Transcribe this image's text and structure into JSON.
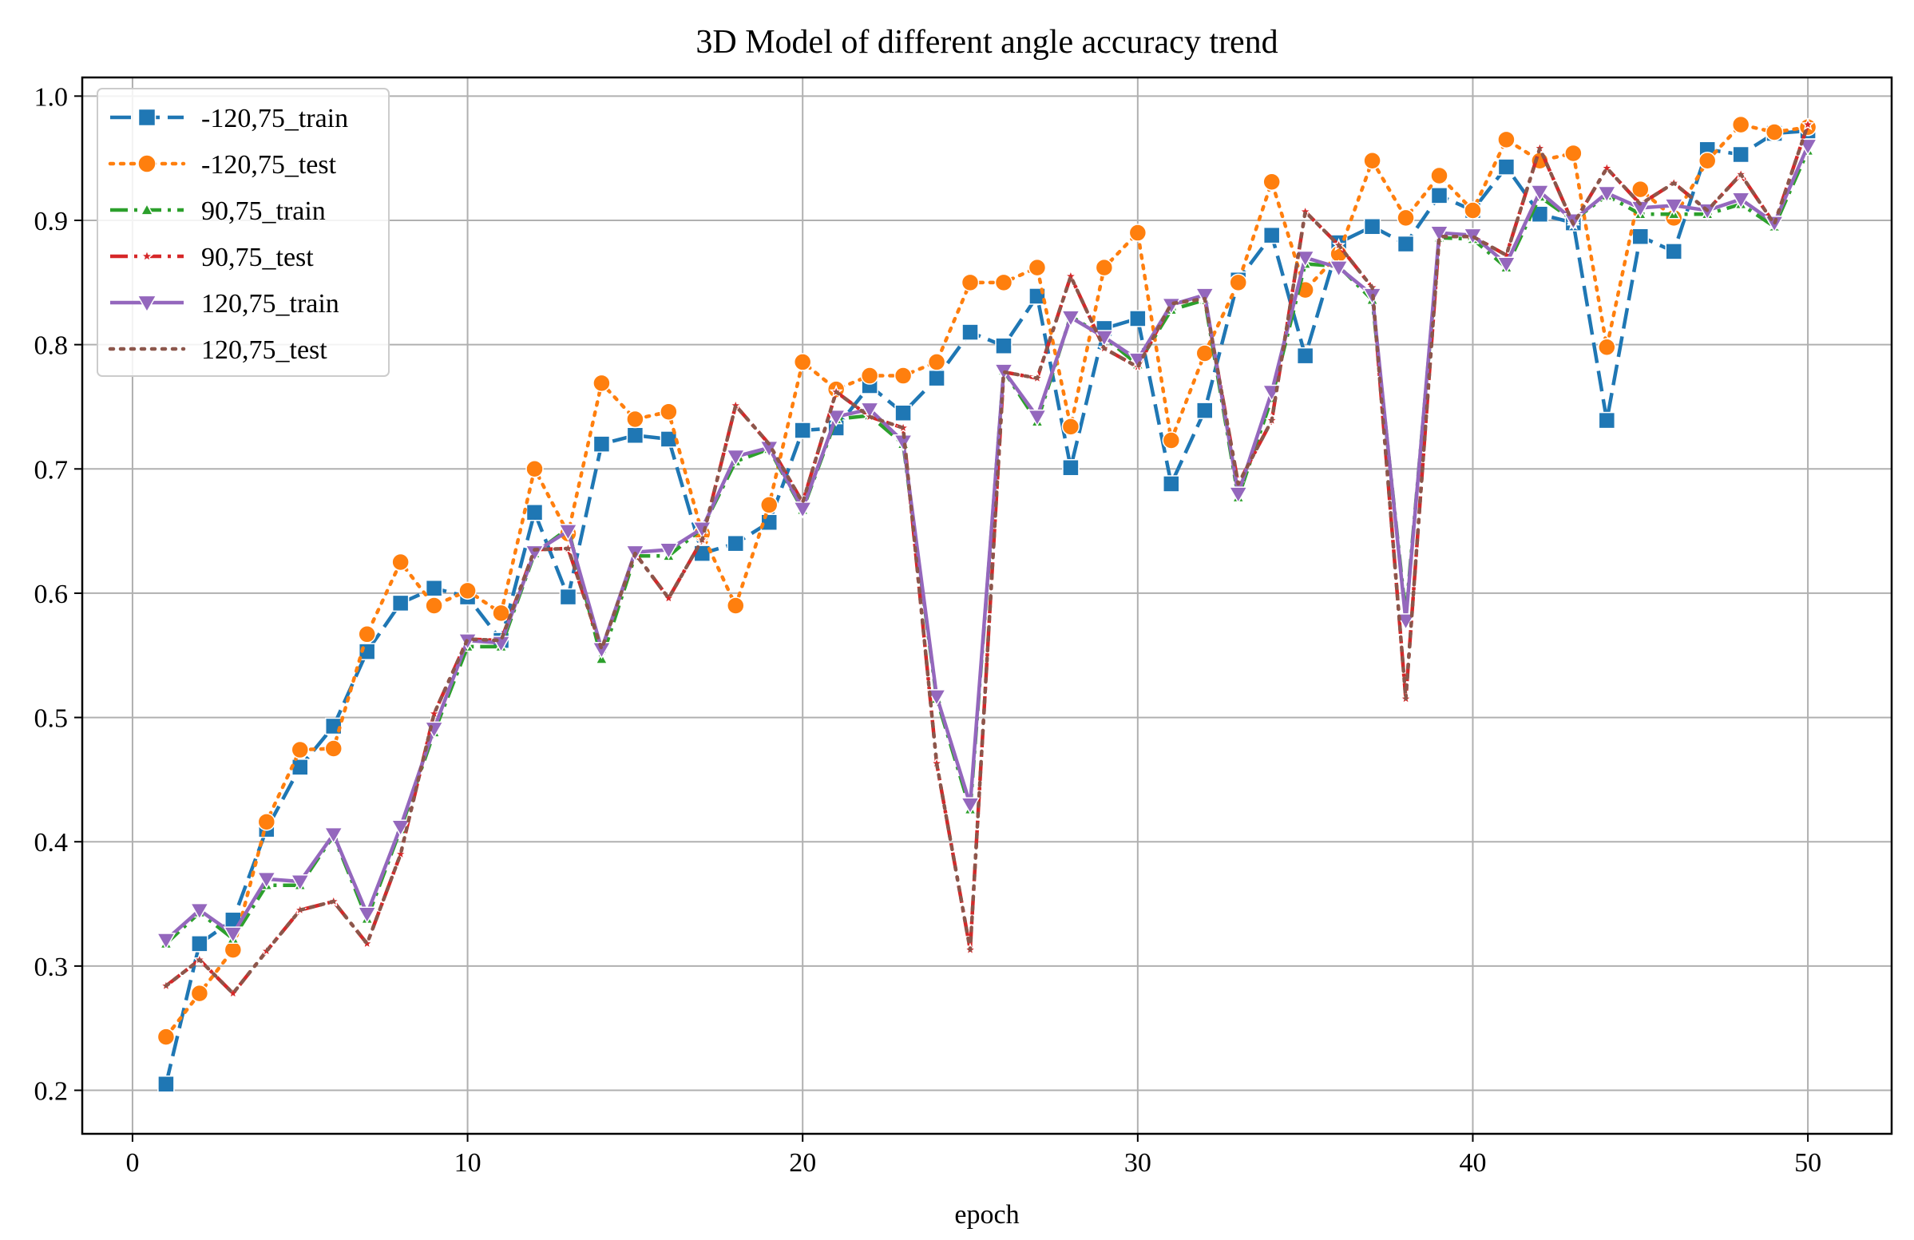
{
  "chart_data": {
    "type": "line",
    "title": "3D Model of different angle accuracy trend",
    "xlabel": "epoch",
    "ylabel": "",
    "xlim": [
      -1.5,
      52.5
    ],
    "ylim": [
      0.165,
      1.015
    ],
    "xticks": [
      0,
      10,
      20,
      30,
      40,
      50
    ],
    "yticks": [
      0.2,
      0.3,
      0.4,
      0.5,
      0.6,
      0.7,
      0.8,
      0.9,
      1.0
    ],
    "xtick_labels": [
      "0",
      "10",
      "20",
      "30",
      "40",
      "50"
    ],
    "ytick_labels": [
      "0.2",
      "0.3",
      "0.4",
      "0.5",
      "0.6",
      "0.7",
      "0.8",
      "0.9",
      "1.0"
    ],
    "grid": true,
    "legend_position": "top-left",
    "x": [
      1,
      2,
      3,
      4,
      5,
      6,
      7,
      8,
      9,
      10,
      11,
      12,
      13,
      14,
      15,
      16,
      17,
      18,
      19,
      20,
      21,
      22,
      23,
      24,
      25,
      26,
      27,
      28,
      29,
      30,
      31,
      32,
      33,
      34,
      35,
      36,
      37,
      38,
      39,
      40,
      41,
      42,
      43,
      44,
      45,
      46,
      47,
      48,
      49,
      50
    ],
    "series": [
      {
        "name": "-120,75_train",
        "color": "#1f77b4",
        "dash": "dashed",
        "marker": "square",
        "values": [
          0.205,
          0.318,
          0.337,
          0.41,
          0.46,
          0.493,
          0.553,
          0.592,
          0.604,
          0.597,
          0.562,
          0.665,
          0.597,
          0.72,
          0.727,
          0.724,
          0.632,
          0.64,
          0.657,
          0.731,
          0.733,
          0.767,
          0.745,
          0.773,
          0.81,
          0.799,
          0.839,
          0.701,
          0.813,
          0.821,
          0.688,
          0.747,
          0.852,
          0.888,
          0.791,
          0.882,
          0.895,
          0.881,
          0.92,
          0.908,
          0.943,
          0.905,
          0.898,
          0.739,
          0.887,
          0.875,
          0.957,
          0.953,
          0.97,
          0.972
        ]
      },
      {
        "name": "-120,75_test",
        "color": "#ff7f0e",
        "dash": "dotted",
        "marker": "circle",
        "values": [
          0.243,
          0.278,
          0.313,
          0.416,
          0.474,
          0.475,
          0.567,
          0.625,
          0.59,
          0.602,
          0.584,
          0.7,
          0.648,
          0.769,
          0.74,
          0.746,
          0.648,
          0.59,
          0.671,
          0.786,
          0.764,
          0.775,
          0.775,
          0.786,
          0.85,
          0.85,
          0.862,
          0.734,
          0.862,
          0.89,
          0.723,
          0.793,
          0.85,
          0.931,
          0.844,
          0.873,
          0.948,
          0.902,
          0.936,
          0.908,
          0.965,
          0.948,
          0.954,
          0.798,
          0.925,
          0.902,
          0.948,
          0.977,
          0.971,
          0.975
        ]
      },
      {
        "name": "90,75_train",
        "color": "#2ca02c",
        "dash": "dashdot",
        "marker": "triangle-up",
        "values": [
          0.318,
          0.343,
          0.322,
          0.365,
          0.365,
          0.405,
          0.338,
          0.41,
          0.488,
          0.557,
          0.557,
          0.632,
          0.652,
          0.547,
          0.63,
          0.63,
          0.652,
          0.706,
          0.716,
          0.667,
          0.74,
          0.743,
          0.72,
          0.515,
          0.426,
          0.779,
          0.738,
          0.823,
          0.806,
          0.784,
          0.828,
          0.836,
          0.677,
          0.757,
          0.865,
          0.863,
          0.836,
          0.582,
          0.886,
          0.885,
          0.862,
          0.919,
          0.9,
          0.92,
          0.905,
          0.905,
          0.905,
          0.913,
          0.895,
          0.956
        ]
      },
      {
        "name": "90,75_test",
        "color": "#d62728",
        "dash": "dashdot",
        "marker": "star",
        "values": [
          0.284,
          0.305,
          0.278,
          0.312,
          0.345,
          0.352,
          0.318,
          0.39,
          0.503,
          0.563,
          0.562,
          0.635,
          0.636,
          0.555,
          0.632,
          0.596,
          0.643,
          0.751,
          0.72,
          0.673,
          0.762,
          0.742,
          0.733,
          0.463,
          0.313,
          0.778,
          0.773,
          0.855,
          0.797,
          0.782,
          0.833,
          0.837,
          0.688,
          0.739,
          0.907,
          0.88,
          0.846,
          0.515,
          0.887,
          0.887,
          0.872,
          0.958,
          0.897,
          0.942,
          0.913,
          0.93,
          0.908,
          0.937,
          0.897,
          0.977
        ]
      },
      {
        "name": "120,75_train",
        "color": "#9467bd",
        "dash": "solid",
        "marker": "triangle-down",
        "values": [
          0.321,
          0.345,
          0.326,
          0.37,
          0.368,
          0.406,
          0.342,
          0.412,
          0.491,
          0.562,
          0.56,
          0.633,
          0.65,
          0.555,
          0.633,
          0.635,
          0.652,
          0.71,
          0.717,
          0.668,
          0.742,
          0.748,
          0.722,
          0.517,
          0.43,
          0.779,
          0.742,
          0.822,
          0.806,
          0.788,
          0.832,
          0.84,
          0.68,
          0.762,
          0.87,
          0.862,
          0.84,
          0.578,
          0.89,
          0.888,
          0.865,
          0.923,
          0.9,
          0.922,
          0.91,
          0.912,
          0.908,
          0.917,
          0.898,
          0.96
        ]
      },
      {
        "name": "120,75_test",
        "color": "#8c564b",
        "dash": "dotted",
        "marker": "none",
        "values": [
          0.284,
          0.305,
          0.278,
          0.312,
          0.345,
          0.352,
          0.318,
          0.39,
          0.503,
          0.563,
          0.562,
          0.635,
          0.636,
          0.555,
          0.632,
          0.596,
          0.643,
          0.751,
          0.72,
          0.673,
          0.762,
          0.742,
          0.733,
          0.463,
          0.313,
          0.778,
          0.773,
          0.855,
          0.797,
          0.782,
          0.833,
          0.837,
          0.688,
          0.739,
          0.907,
          0.88,
          0.846,
          0.515,
          0.887,
          0.887,
          0.872,
          0.958,
          0.897,
          0.942,
          0.913,
          0.93,
          0.908,
          0.937,
          0.897,
          0.977
        ]
      }
    ]
  }
}
